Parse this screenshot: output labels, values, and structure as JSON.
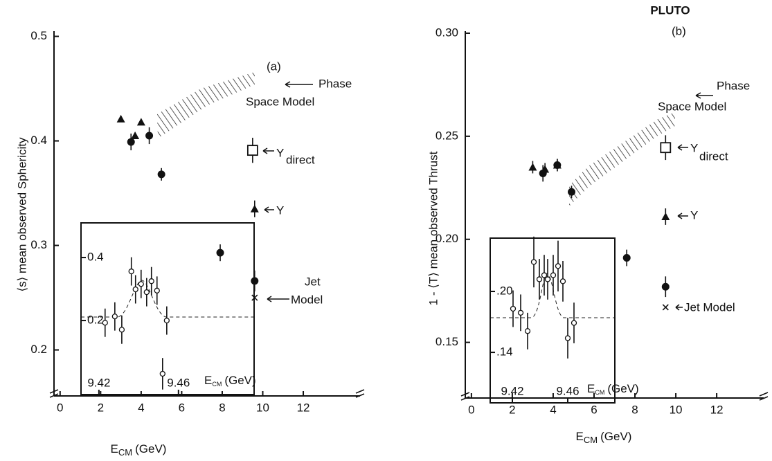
{
  "chart_data": [
    {
      "type": "scatter",
      "panel_label": "(a)",
      "y_label": "⟨s⟩ mean observed Sphericity",
      "x_label": [
        "E",
        "CM",
        "(GeV)"
      ],
      "xlim": [
        -0.3,
        14.8
      ],
      "ylim": [
        0.156,
        0.505
      ],
      "xticks": [
        0,
        2,
        4,
        6,
        8,
        10,
        12
      ],
      "yticks": [
        0.2,
        0.3,
        0.4,
        0.5
      ],
      "series": [
        {
          "marker": "triangle",
          "x": [
            3.0,
            3.7,
            4.0
          ],
          "values": [
            0.421,
            0.405,
            0.418
          ]
        },
        {
          "marker": "circle-filled",
          "x": [
            3.5,
            4.4,
            5.0,
            7.9,
            9.6
          ],
          "values": [
            0.399,
            0.405,
            0.368,
            0.293,
            0.266
          ],
          "errors": [
            0.008,
            0.008,
            0.006,
            0.008,
            0.01
          ]
        },
        {
          "marker": "square-open",
          "x": [
            9.5
          ],
          "values": [
            0.391
          ],
          "errors": [
            0.012
          ]
        },
        {
          "marker": "triangle",
          "x": [
            9.6
          ],
          "values": [
            0.335
          ],
          "errors": [
            0.008
          ]
        },
        {
          "marker": "cross",
          "x": [
            9.6
          ],
          "values": [
            0.25
          ]
        }
      ],
      "annotations": [
        "Phase",
        "Space Model",
        "Υ",
        "direct",
        "Υ",
        "Jet",
        "Model"
      ]
    },
    {
      "type": "scatter",
      "inset": true,
      "x_label": [
        "E",
        "CM",
        "(GeV)"
      ],
      "xlim": [
        9.411,
        9.498
      ],
      "ylim": [
        -0.035,
        0.51
      ],
      "xticks": [
        9.42,
        9.46
      ],
      "yticks": [
        0.2,
        0.4
      ],
      "series": [
        {
          "marker": "circle-open",
          "x": [
            9.4231,
            9.428,
            9.4315,
            9.4363,
            9.4384,
            9.4412,
            9.444,
            9.4464,
            9.4492,
            9.452,
            9.4541
          ],
          "values": [
            0.193,
            0.213,
            0.171,
            0.356,
            0.299,
            0.316,
            0.29,
            0.325,
            0.295,
            0.031,
            0.2
          ],
          "errors": [
            0.045,
            0.045,
            0.045,
            0.045,
            0.045,
            0.045,
            0.045,
            0.045,
            0.045,
            0.05,
            0.045
          ]
        }
      ]
    },
    {
      "type": "scatter",
      "title": "PLUTO",
      "panel_label": "(b)",
      "y_label": "1 - ⟨T⟩ mean observed Thrust",
      "x_label": [
        "E",
        "CM",
        "(GeV)"
      ],
      "xlim": [
        -0.3,
        14.3
      ],
      "ylim": [
        0.123,
        0.301
      ],
      "xticks": [
        0,
        2,
        4,
        6,
        8,
        10,
        12
      ],
      "yticks": [
        0.15,
        {
          "value": 0.2,
          "label": "0.20"
        },
        0.25,
        {
          "value": 0.3,
          "label": "0.30"
        }
      ],
      "series": [
        {
          "marker": "triangle",
          "x": [
            3.0,
            3.6,
            4.2
          ],
          "values": [
            0.235,
            0.234,
            0.236
          ],
          "errors": [
            0.003,
            0.003,
            0.003
          ]
        },
        {
          "marker": "circle-filled",
          "x": [
            3.5,
            4.2,
            4.9,
            7.6,
            9.5
          ],
          "values": [
            0.232,
            0.236,
            0.223,
            0.191,
            0.177
          ],
          "errors": [
            0.004,
            0.003,
            0.003,
            0.004,
            0.005
          ]
        },
        {
          "marker": "square-open",
          "x": [
            9.5
          ],
          "values": [
            0.2445
          ],
          "errors": [
            0.006
          ]
        },
        {
          "marker": "triangle",
          "x": [
            9.5
          ],
          "values": [
            0.211
          ],
          "errors": [
            0.004
          ]
        },
        {
          "marker": "cross",
          "x": [
            9.5
          ],
          "values": [
            0.167
          ]
        }
      ],
      "annotations": [
        "Phase",
        "Space Model",
        "Υ",
        "direct",
        "Υ",
        "Jet Model"
      ]
    },
    {
      "type": "scatter",
      "inset": true,
      "x_label": [
        "E",
        "CM",
        "(GeV)"
      ],
      "xlim": [
        9.404,
        9.494
      ],
      "ylim": [
        0.0903,
        0.2525
      ],
      "xticks": [
        9.42,
        9.46
      ],
      "yticks": [
        {
          "value": 0.14,
          "label": ".14"
        },
        {
          "value": 0.2,
          "label": ".20"
        }
      ],
      "series": [
        {
          "marker": "circle-open",
          "x": [
            9.4205,
            9.426,
            9.431,
            9.4355,
            9.4395,
            9.443,
            9.4455,
            9.4495,
            9.453,
            9.4565,
            9.46,
            9.4645
          ],
          "values": [
            0.183,
            0.179,
            0.161,
            0.229,
            0.212,
            0.216,
            0.212,
            0.216,
            0.225,
            0.21,
            0.154,
            0.169
          ],
          "errors": [
            0.018,
            0.018,
            0.018,
            0.025,
            0.02,
            0.02,
            0.02,
            0.02,
            0.025,
            0.02,
            0.02,
            0.02
          ]
        }
      ]
    }
  ]
}
